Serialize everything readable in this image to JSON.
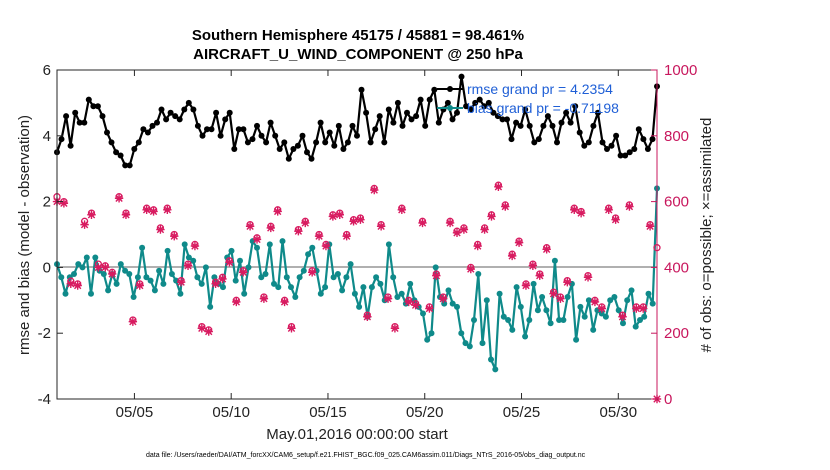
{
  "chart_data": {
    "type": "line",
    "title_line1": "Southern Hemisphere 45175 / 45881 = 98.461%",
    "title_line2": "AIRCRAFT_U_WIND_COMPONENT @ 250 hPa",
    "xlabel": "May.01,2016 00:00:00 start",
    "ylabel_left": "rmse and bias (model - observation)",
    "ylabel_right": "# of obs: o=possible; ×=assimilated",
    "footnote": "data file: /Users/raeder/DAI/ATM_forcXX/CAM6_setup/f.e21.FHIST_BGC.f09_025.CAM6assim.011/Diags_NTrS_2016-05/obs_diag_output.nc",
    "x_range_days": [
      1,
      32
    ],
    "x_tick_days": [
      5,
      10,
      15,
      20,
      25,
      30
    ],
    "x_tick_labels": [
      "05/05",
      "05/10",
      "05/15",
      "05/20",
      "05/25",
      "05/30"
    ],
    "ylim_left": [
      -4,
      6
    ],
    "y_ticks_left": [
      -4,
      -2,
      0,
      2,
      4,
      6
    ],
    "ylim_right": [
      0,
      1000
    ],
    "y_ticks_right": [
      0,
      200,
      400,
      600,
      800,
      1000
    ],
    "legend": [
      {
        "label": "rmse grand pr = 4.2354",
        "color": "#000000"
      },
      {
        "label": "bias grand pr = -0.71198",
        "color": "#0f8a8a"
      }
    ],
    "colors": {
      "rmse": "#000000",
      "bias": "#0f8a8a",
      "obs": "#d81b60",
      "zero_line": "#b0b0b0"
    },
    "series": [
      {
        "name": "rmse",
        "axis": "left",
        "values": [
          3.5,
          3.9,
          4.6,
          3.7,
          4.7,
          4.4,
          4.4,
          5.1,
          4.9,
          4.9,
          4.6,
          4.1,
          3.8,
          3.5,
          3.4,
          3.1,
          3.1,
          3.6,
          3.8,
          4.2,
          4.1,
          4.3,
          4.4,
          4.8,
          4.5,
          4.7,
          4.6,
          4.5,
          4.8,
          5.0,
          4.8,
          4.3,
          4.0,
          4.2,
          4.2,
          4.7,
          4.0,
          4.5,
          4.7,
          3.6,
          4.2,
          4.2,
          3.8,
          3.9,
          4.3,
          4.0,
          3.8,
          4.4,
          4.0,
          3.6,
          3.8,
          3.3,
          3.6,
          3.7,
          4.0,
          3.5,
          3.3,
          3.8,
          4.4,
          3.8,
          4.1,
          3.7,
          4.3,
          3.6,
          3.8,
          4.3,
          4.0,
          5.4,
          4.7,
          3.8,
          4.2,
          4.6,
          3.8,
          4.8,
          4.4,
          5.0,
          4.3,
          4.7,
          4.5,
          4.6,
          5.1,
          4.3,
          5.1,
          5.4,
          4.4,
          4.8,
          5.0,
          4.5,
          4.7,
          5.8,
          4.9,
          4.8,
          5.0,
          5.1,
          4.9,
          5.0,
          4.7,
          4.6,
          4.5,
          4.5,
          3.9,
          4.4,
          4.3,
          4.8,
          4.3,
          3.8,
          3.9,
          4.3,
          4.6,
          4.3,
          3.8,
          4.4,
          4.7,
          4.4,
          4.9,
          4.1,
          3.7,
          3.8,
          4.3,
          4.7,
          3.8,
          3.6,
          3.7,
          4.0,
          3.4,
          3.4,
          3.5,
          3.6,
          4.2,
          3.9,
          3.6,
          3.9,
          5.5
        ]
      },
      {
        "name": "bias",
        "axis": "left",
        "values": [
          0.1,
          -0.3,
          -0.8,
          -0.3,
          -0.2,
          0.1,
          0.0,
          0.3,
          -0.8,
          0.3,
          -0.1,
          -0.2,
          -0.7,
          -0.2,
          -0.5,
          0.1,
          -0.1,
          -0.2,
          -0.9,
          -0.3,
          0.6,
          -0.3,
          -0.4,
          -0.7,
          -0.1,
          -0.5,
          0.5,
          -0.2,
          -0.4,
          -0.8,
          0.7,
          0.3,
          0.2,
          -0.3,
          -0.5,
          0.0,
          -1.2,
          -0.3,
          -0.5,
          -0.6,
          0.3,
          0.5,
          -0.4,
          0.2,
          -0.8,
          0.0,
          0.8,
          0.6,
          -0.3,
          -0.2,
          0.7,
          -0.5,
          -0.6,
          0.8,
          -0.3,
          -0.6,
          -0.9,
          -0.3,
          -0.1,
          0.4,
          0.6,
          -0.1,
          -0.8,
          -0.6,
          0.7,
          -0.3,
          -0.2,
          -0.7,
          -0.3,
          0.1,
          -0.8,
          -1.2,
          -0.6,
          -1.5,
          -0.6,
          -0.3,
          -0.5,
          -1.0,
          0.7,
          -0.3,
          -0.9,
          -0.8,
          -1.1,
          -0.5,
          -1.0,
          -1.2,
          -1.4,
          -2.2,
          -2.0,
          0.0,
          -0.9,
          -1.1,
          -0.7,
          -1.1,
          -1.2,
          -2.0,
          -2.3,
          -2.4,
          -1.6,
          -0.2,
          -2.3,
          -1.0,
          -2.8,
          -3.1,
          -0.8,
          -1.5,
          -1.6,
          -1.9,
          -0.6,
          -1.2,
          -2.1,
          -1.6,
          -0.5,
          -1.3,
          -0.9,
          -1.3,
          -1.7,
          0.2,
          -1.6,
          -1.6,
          -0.9,
          -0.5,
          -2.2,
          -1.2,
          -1.5,
          -1.0,
          -1.9,
          -1.3,
          -1.4,
          -1.5,
          -1.0,
          -0.9,
          -1.3,
          -1.7,
          -1.0,
          -0.7,
          -1.8,
          -1.6,
          -1.5,
          -0.8,
          -1.1,
          2.4
        ]
      },
      {
        "name": "obs_possible",
        "axis": "right",
        "values": [
          615,
          600,
          358,
          350,
          540,
          565,
          410,
          405,
          385,
          615,
          565,
          240,
          350,
          580,
          575,
          520,
          580,
          500,
          360,
          410,
          470,
          220,
          210,
          355,
          370,
          420,
          300,
          390,
          530,
          490,
          310,
          525,
          575,
          300,
          220,
          515,
          540,
          390,
          500,
          470,
          560,
          565,
          500,
          545,
          550,
          255,
          640,
          530,
          310,
          220,
          580,
          300,
          290,
          540,
          280,
          380,
          310,
          540,
          510,
          520,
          400,
          470,
          520,
          560,
          650,
          590,
          440,
          480,
          350,
          410,
          380,
          460,
          325,
          310,
          360,
          580,
          570,
          375,
          300,
          280,
          580,
          550,
          255,
          590,
          280,
          280,
          530,
          460
        ]
      },
      {
        "name": "obs_assimilated",
        "axis": "right",
        "values": [
          600,
          595,
          350,
          345,
          530,
          560,
          400,
          400,
          380,
          610,
          560,
          235,
          345,
          575,
          570,
          515,
          575,
          495,
          355,
          405,
          465,
          215,
          205,
          350,
          365,
          415,
          295,
          385,
          525,
          485,
          305,
          520,
          570,
          295,
          215,
          510,
          535,
          385,
          495,
          465,
          555,
          560,
          495,
          540,
          545,
          250,
          635,
          525,
          305,
          215,
          575,
          295,
          285,
          535,
          275,
          375,
          305,
          535,
          505,
          515,
          395,
          465,
          515,
          555,
          645,
          585,
          435,
          475,
          345,
          405,
          375,
          455,
          320,
          305,
          355,
          575,
          565,
          370,
          295,
          275,
          575,
          545,
          250,
          585,
          275,
          275,
          525,
          0
        ]
      }
    ]
  }
}
